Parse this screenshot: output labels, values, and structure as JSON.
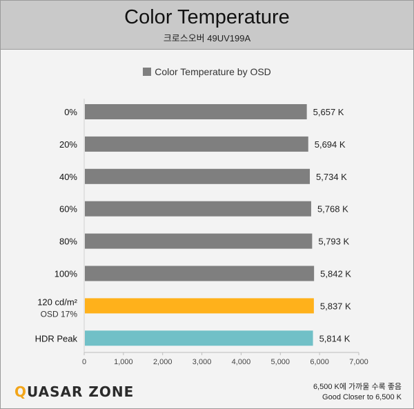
{
  "header": {
    "title": "Color Temperature",
    "subtitle": "크로스오버 49UV199A"
  },
  "legend": {
    "label": "Color Temperature by OSD"
  },
  "colors": {
    "default_bar": "#7f7f7f",
    "highlight_orange": "#ffb11b",
    "highlight_teal": "#71c0c7"
  },
  "chart_data": {
    "type": "bar",
    "orientation": "horizontal",
    "categories": [
      "0%",
      "20%",
      "40%",
      "60%",
      "80%",
      "100%",
      "120 cd/m²",
      "HDR Peak"
    ],
    "category_sublabels": [
      "",
      "",
      "",
      "",
      "",
      "",
      "OSD 17%",
      ""
    ],
    "values": [
      5657,
      5694,
      5734,
      5768,
      5793,
      5842,
      5837,
      5814
    ],
    "value_labels": [
      "5,657 K",
      "5,694 K",
      "5,734 K",
      "5,768 K",
      "5,793 K",
      "5,842 K",
      "5,837 K",
      "5,814 K"
    ],
    "bar_colors": [
      "#7f7f7f",
      "#7f7f7f",
      "#7f7f7f",
      "#7f7f7f",
      "#7f7f7f",
      "#7f7f7f",
      "#ffb11b",
      "#71c0c7"
    ],
    "xlim": [
      0,
      7000
    ],
    "xticks": [
      0,
      1000,
      2000,
      3000,
      4000,
      5000,
      6000,
      7000
    ],
    "xtick_labels": [
      "0",
      "1,000",
      "2,000",
      "3,000",
      "4,000",
      "5,000",
      "6,000",
      "7,000"
    ],
    "series": [
      {
        "name": "Color Temperature by OSD"
      }
    ],
    "legend_position": "top-center",
    "grid": false
  },
  "footer": {
    "logo_q": "Q",
    "logo_rest": "UASAR ZONE",
    "note_line1": "6,500 K에 가까울 수록 좋음",
    "note_line2": "Good Closer to 6,500 K"
  }
}
